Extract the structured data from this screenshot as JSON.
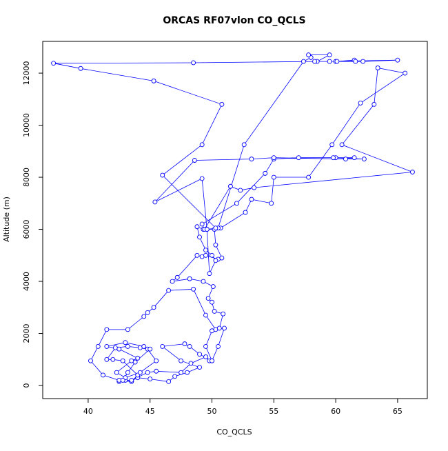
{
  "chart_data": {
    "type": "line",
    "title": "ORCAS RF07vlon CO_QCLS",
    "xlabel": "CO_QCLS",
    "ylabel": "Altitude (m)",
    "color": "#0000ff",
    "x": [
      42.5,
      43,
      43.5,
      44,
      45,
      46.5,
      47,
      48,
      49,
      47.5,
      46,
      47.8,
      48.2,
      49,
      50,
      50.5,
      51,
      50.3,
      49.5,
      48.5,
      46.5,
      45.3,
      44.8,
      44.5,
      43.2,
      41.5,
      40.8,
      40.2,
      41.2,
      42.5,
      43.5,
      44,
      42.8,
      42,
      41.5,
      42.2,
      43.2,
      44.2,
      44.8,
      45.5,
      44.2,
      43,
      42.3,
      43.5,
      44,
      42.5,
      41.5,
      43,
      44.5,
      45,
      43.8,
      43.2,
      42.8,
      43.5,
      44.8,
      45.5,
      47.5,
      48.3,
      49.5,
      49.8,
      50,
      49.5,
      50,
      50.6,
      50.9,
      50.2,
      50,
      49.7,
      50.1,
      49.3,
      48.2,
      46.8,
      47.2,
      48.8,
      49.2,
      49.5,
      50.5,
      50.8,
      50.3,
      50.2,
      49.3,
      48.8,
      49,
      49.5,
      50,
      50.3,
      49.8,
      49.6,
      50.7,
      52.7,
      53.2,
      54.8,
      55,
      57.8,
      59.7,
      62,
      65.6,
      63.4,
      63.1,
      60.5,
      66.2,
      53.4,
      52.3,
      51.5,
      49.4,
      49.2,
      52,
      54.3,
      55,
      57,
      61.5,
      60,
      59.8,
      62.3,
      60.8,
      55,
      53.2,
      48.6,
      45.4,
      49.2,
      49.6,
      50.5,
      52.6,
      57.4,
      58,
      57.8,
      59.5,
      58.5,
      60,
      61.5,
      60.1,
      61.6,
      62.2,
      65,
      59.5,
      58.3,
      48.5,
      37.2,
      39.4,
      45.3,
      50.8,
      49.2,
      46,
      50.3
    ],
    "values": [
      150,
      200,
      180,
      300,
      250,
      150,
      350,
      500,
      700,
      950,
      1500,
      1600,
      1500,
      1200,
      950,
      1500,
      2200,
      2150,
      2700,
      3700,
      3650,
      3000,
      2800,
      2650,
      2150,
      2150,
      1500,
      950,
      400,
      200,
      150,
      400,
      950,
      1000,
      1000,
      1450,
      1500,
      1450,
      1400,
      950,
      500,
      300,
      500,
      950,
      1050,
      1400,
      1500,
      1650,
      1500,
      1400,
      900,
      500,
      200,
      200,
      500,
      550,
      500,
      850,
      1100,
      950,
      950,
      1500,
      2100,
      2200,
      2750,
      2850,
      3200,
      3350,
      3800,
      4000,
      4100,
      4000,
      4150,
      5000,
      4950,
      5000,
      4850,
      4900,
      5400,
      6000,
      6000,
      6100,
      5700,
      5200,
      5000,
      4800,
      4300,
      6000,
      6050,
      6650,
      7150,
      7000,
      8000,
      8000,
      9250,
      10850,
      12000,
      12200,
      10800,
      9250,
      8200,
      7600,
      7500,
      7650,
      6000,
      6200,
      7000,
      8150,
      8700,
      8750,
      8750,
      8750,
      8750,
      8700,
      8700,
      8750,
      8700,
      8650,
      7050,
      7950,
      6000,
      6050,
      9250,
      12450,
      12600,
      12700,
      12700,
      12450,
      12450,
      12500,
      12450,
      12450,
      12450,
      12500,
      12450,
      12450,
      12400,
      12380,
      12180,
      11700,
      10800,
      9250,
      8080,
      6050
    ],
    "xlim": [
      36.33,
      67.4
    ],
    "ylim": [
      -503,
      13220
    ],
    "xticks": [
      40,
      45,
      50,
      55,
      60,
      65
    ],
    "yticks": [
      0,
      2000,
      4000,
      6000,
      8000,
      10000,
      12000
    ]
  }
}
